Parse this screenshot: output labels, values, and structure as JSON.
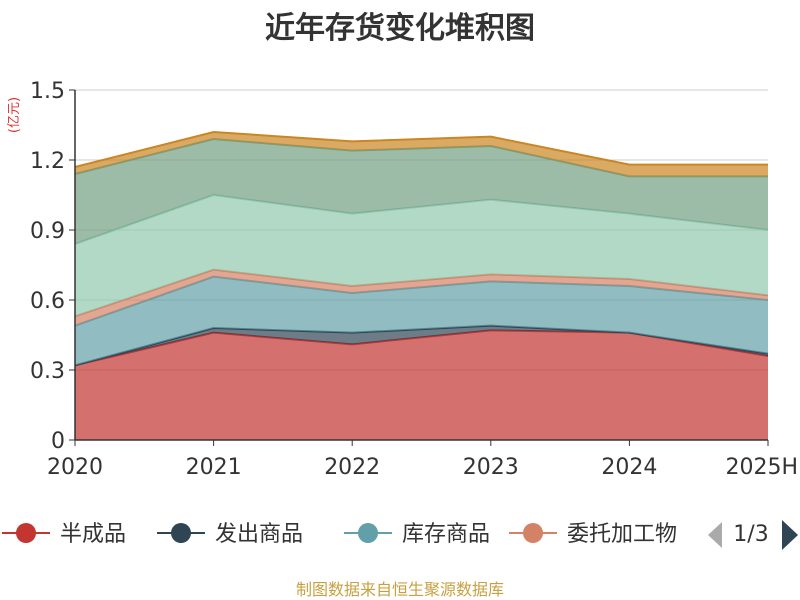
{
  "chart_data": {
    "type": "area",
    "stacked": true,
    "title": "近年存货变化堆积图",
    "ylabel": "(亿元)",
    "categories": [
      "2020",
      "2021",
      "2022",
      "2023",
      "2024",
      "2025H"
    ],
    "ylim": [
      0,
      1.5
    ],
    "yticks": [
      "0",
      "0.3",
      "0.6",
      "0.9",
      "1.2",
      "1.5"
    ],
    "grid": true,
    "series": [
      {
        "name": "半成品",
        "values": [
          0.32,
          0.46,
          0.41,
          0.47,
          0.46,
          0.36
        ],
        "color": "#c23531"
      },
      {
        "name": "发出商品",
        "values": [
          0.0,
          0.02,
          0.05,
          0.02,
          0.0,
          0.01
        ],
        "color": "#2f4554"
      },
      {
        "name": "库存商品",
        "values": [
          0.17,
          0.22,
          0.17,
          0.19,
          0.2,
          0.23
        ],
        "color": "#61a0a8"
      },
      {
        "name": "委托加工物资",
        "values": [
          0.04,
          0.03,
          0.03,
          0.03,
          0.03,
          0.02
        ],
        "color": "#d48265"
      },
      {
        "name": "",
        "values": [
          0.31,
          0.32,
          0.31,
          0.32,
          0.28,
          0.28
        ],
        "color": "#91c7ae"
      },
      {
        "name": "",
        "values": [
          0.3,
          0.24,
          0.27,
          0.23,
          0.16,
          0.23
        ],
        "color": "#749f83"
      },
      {
        "name": "",
        "values": [
          0.03,
          0.03,
          0.04,
          0.04,
          0.05,
          0.05
        ],
        "color": "#ca8622"
      }
    ],
    "legend": {
      "position": "bottom",
      "visible_items": [
        "半成品",
        "发出商品",
        "库存商品",
        "委托加工物"
      ],
      "page": "1/3"
    }
  },
  "source": "制图数据来自恒生聚源数据库"
}
